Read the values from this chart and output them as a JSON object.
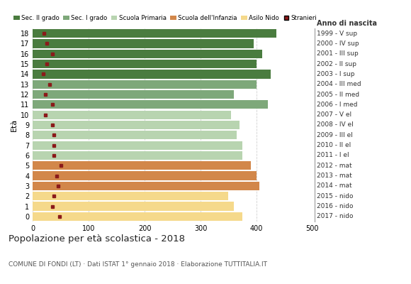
{
  "ages": [
    18,
    17,
    16,
    15,
    14,
    13,
    12,
    11,
    10,
    9,
    8,
    7,
    6,
    5,
    4,
    3,
    2,
    1,
    0
  ],
  "values": [
    435,
    395,
    410,
    400,
    425,
    400,
    360,
    420,
    355,
    370,
    365,
    375,
    375,
    390,
    400,
    405,
    350,
    360,
    375
  ],
  "stranieri": [
    20,
    25,
    35,
    25,
    18,
    30,
    22,
    35,
    22,
    35,
    38,
    38,
    38,
    50,
    42,
    45,
    38,
    35,
    48
  ],
  "categories": [
    "Sec. II grado",
    "Sec. I grado",
    "Scuola Primaria",
    "Scuola dell'Infanzia",
    "Asilo Nido"
  ],
  "colors": {
    "Sec. II grado": "#4a7c3f",
    "Sec. I grado": "#7ea87a",
    "Scuola Primaria": "#b8d4b0",
    "Scuola dell'Infanzia": "#d2874a",
    "Asilo Nido": "#f5d98b"
  },
  "bar_colors_by_age": {
    "18": "#4a7c3f",
    "17": "#4a7c3f",
    "16": "#4a7c3f",
    "15": "#4a7c3f",
    "14": "#4a7c3f",
    "13": "#7ea87a",
    "12": "#7ea87a",
    "11": "#7ea87a",
    "10": "#b8d4b0",
    "9": "#b8d4b0",
    "8": "#b8d4b0",
    "7": "#b8d4b0",
    "6": "#b8d4b0",
    "5": "#d2874a",
    "4": "#d2874a",
    "3": "#d2874a",
    "2": "#f5d98b",
    "1": "#f5d98b",
    "0": "#f5d98b"
  },
  "right_labels": {
    "18": "1999 - V sup",
    "17": "2000 - IV sup",
    "16": "2001 - III sup",
    "15": "2002 - II sup",
    "14": "2003 - I sup",
    "13": "2004 - III med",
    "12": "2005 - II med",
    "11": "2006 - I med",
    "10": "2007 - V el",
    "9": "2008 - IV el",
    "8": "2009 - III el",
    "7": "2010 - II el",
    "6": "2011 - I el",
    "5": "2012 - mat",
    "4": "2013 - mat",
    "3": "2014 - mat",
    "2": "2015 - nido",
    "1": "2016 - nido",
    "0": "2017 - nido"
  },
  "ylabel": "Età",
  "title": "Popolazione per età scolastica - 2018",
  "subtitle": "COMUNE DI FONDI (LT) · Dati ISTAT 1° gennaio 2018 · Elaborazione TUTTITALIA.IT",
  "xlim": [
    0,
    500
  ],
  "xticks": [
    0,
    100,
    200,
    300,
    400,
    500
  ],
  "stranieri_color": "#8b1a1a",
  "anno_label": "Anno di nascita",
  "bg_color": "#ffffff",
  "grid_color": "#cccccc"
}
